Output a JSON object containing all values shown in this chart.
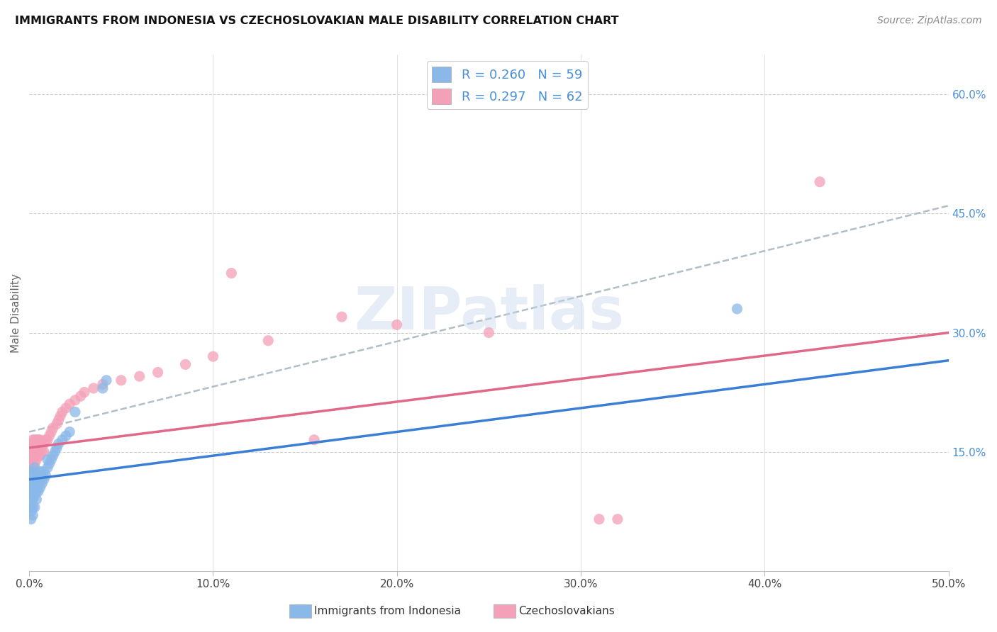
{
  "title": "IMMIGRANTS FROM INDONESIA VS CZECHOSLOVAKIAN MALE DISABILITY CORRELATION CHART",
  "source": "Source: ZipAtlas.com",
  "ylabel": "Male Disability",
  "ytick_labels": [
    "15.0%",
    "30.0%",
    "45.0%",
    "60.0%"
  ],
  "ytick_values": [
    0.15,
    0.3,
    0.45,
    0.6
  ],
  "xtick_labels": [
    "0.0%",
    "10.0%",
    "20.0%",
    "30.0%",
    "40.0%",
    "50.0%"
  ],
  "xtick_values": [
    0.0,
    0.1,
    0.2,
    0.3,
    0.4,
    0.5
  ],
  "xlim": [
    0.0,
    0.5
  ],
  "ylim": [
    0.0,
    0.65
  ],
  "watermark": "ZIPatlas",
  "legend_label1": "Immigrants from Indonesia",
  "legend_label2": "Czechoslovakians",
  "color_indonesia": "#8ab8e8",
  "color_czech": "#f4a0b8",
  "color_line_indonesia": "#3a7fd5",
  "color_line_czech": "#e06888",
  "color_dashed": "#b0bec8",
  "indonesia_x": [
    0.001,
    0.001,
    0.001,
    0.001,
    0.001,
    0.001,
    0.001,
    0.001,
    0.001,
    0.001,
    0.001,
    0.001,
    0.002,
    0.002,
    0.002,
    0.002,
    0.002,
    0.002,
    0.002,
    0.002,
    0.002,
    0.003,
    0.003,
    0.003,
    0.003,
    0.003,
    0.003,
    0.003,
    0.004,
    0.004,
    0.004,
    0.004,
    0.004,
    0.005,
    0.005,
    0.005,
    0.006,
    0.006,
    0.006,
    0.007,
    0.007,
    0.008,
    0.008,
    0.009,
    0.01,
    0.01,
    0.011,
    0.012,
    0.013,
    0.014,
    0.015,
    0.016,
    0.018,
    0.02,
    0.022,
    0.025,
    0.04,
    0.042,
    0.385
  ],
  "indonesia_y": [
    0.065,
    0.075,
    0.08,
    0.085,
    0.09,
    0.095,
    0.1,
    0.105,
    0.11,
    0.115,
    0.12,
    0.125,
    0.07,
    0.08,
    0.09,
    0.095,
    0.1,
    0.11,
    0.115,
    0.12,
    0.125,
    0.08,
    0.095,
    0.1,
    0.105,
    0.115,
    0.12,
    0.13,
    0.09,
    0.1,
    0.105,
    0.115,
    0.12,
    0.1,
    0.11,
    0.115,
    0.105,
    0.115,
    0.125,
    0.11,
    0.12,
    0.115,
    0.125,
    0.12,
    0.13,
    0.14,
    0.135,
    0.14,
    0.145,
    0.15,
    0.155,
    0.16,
    0.165,
    0.17,
    0.175,
    0.2,
    0.23,
    0.24,
    0.33
  ],
  "czech_x": [
    0.001,
    0.001,
    0.001,
    0.001,
    0.001,
    0.001,
    0.001,
    0.001,
    0.002,
    0.002,
    0.002,
    0.002,
    0.002,
    0.002,
    0.003,
    0.003,
    0.003,
    0.003,
    0.004,
    0.004,
    0.004,
    0.004,
    0.005,
    0.005,
    0.005,
    0.006,
    0.006,
    0.006,
    0.007,
    0.007,
    0.008,
    0.008,
    0.009,
    0.01,
    0.011,
    0.012,
    0.013,
    0.015,
    0.016,
    0.017,
    0.018,
    0.02,
    0.022,
    0.025,
    0.028,
    0.03,
    0.035,
    0.04,
    0.05,
    0.06,
    0.07,
    0.085,
    0.1,
    0.11,
    0.13,
    0.155,
    0.17,
    0.2,
    0.25,
    0.31,
    0.32,
    0.43
  ],
  "czech_y": [
    0.125,
    0.13,
    0.135,
    0.14,
    0.145,
    0.15,
    0.155,
    0.16,
    0.13,
    0.14,
    0.145,
    0.15,
    0.155,
    0.165,
    0.135,
    0.145,
    0.155,
    0.165,
    0.14,
    0.15,
    0.155,
    0.165,
    0.145,
    0.155,
    0.165,
    0.145,
    0.155,
    0.165,
    0.15,
    0.16,
    0.15,
    0.16,
    0.165,
    0.165,
    0.17,
    0.175,
    0.18,
    0.185,
    0.19,
    0.195,
    0.2,
    0.205,
    0.21,
    0.215,
    0.22,
    0.225,
    0.23,
    0.235,
    0.24,
    0.245,
    0.25,
    0.26,
    0.27,
    0.375,
    0.29,
    0.165,
    0.32,
    0.31,
    0.3,
    0.065,
    0.065,
    0.49
  ],
  "line_indo_x0": 0.0,
  "line_indo_y0": 0.115,
  "line_indo_x1": 0.5,
  "line_indo_y1": 0.265,
  "line_czech_x0": 0.0,
  "line_czech_y0": 0.155,
  "line_czech_x1": 0.5,
  "line_czech_y1": 0.3,
  "line_dash_x0": 0.0,
  "line_dash_y0": 0.175,
  "line_dash_x1": 0.5,
  "line_dash_y1": 0.46
}
